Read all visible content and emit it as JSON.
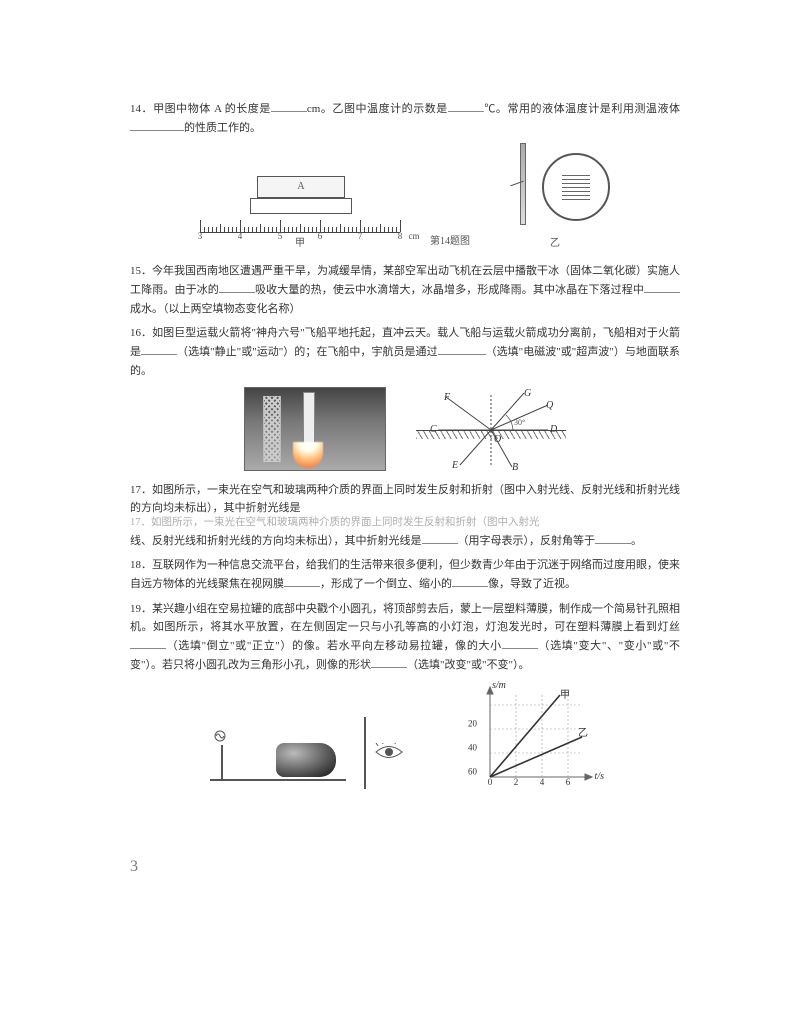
{
  "q14": {
    "num": "14．",
    "text_a": "甲图中物体 A 的长度是",
    "text_b": "cm。乙图中温度计的示数是",
    "text_c": "℃。常用的液体温度计是利用测温液体",
    "text_d": "的性质工作的。",
    "block_label": "A",
    "ruler_cap_left": "甲",
    "ruler_cap_center": "第14题图",
    "ruler_cap_right": "乙",
    "ruler_labels": [
      "3",
      "4",
      "5",
      "6",
      "7",
      "8"
    ],
    "ruler_unit": "cm"
  },
  "q15": {
    "num": "15．",
    "text_a": "今年我国西南地区遭遇严重干旱，为减缓旱情，某部空军出动飞机在云层中播散干冰（固体二氧化碳）实施人工降雨。由于冰的",
    "text_b": "吸收大量的热，使云中水滴增大，冰晶增多，形成降雨。其中冰晶在下落过程中",
    "text_c": "成水。（以上两空填物态变化名称）"
  },
  "q16": {
    "num": "16．",
    "text_a": "如图巨型运载火箭将\"神舟六号\"飞船平地托起，直冲云天。载人飞船与运载火箭成功分离前，飞船相对于火箭是",
    "text_b": "（选填\"静止\"或\"运动\"）的；在飞船中，宇航员是通过",
    "text_c": "（选填\"电磁波\"或\"超声波\"）与地面联系的。"
  },
  "rays": {
    "F": "F",
    "G": "G",
    "C": "C",
    "D": "D",
    "E": "E",
    "B": "B",
    "Q": "Q",
    "O": "O"
  },
  "q17": {
    "num": "17．",
    "text_a": "如图所示，一束光在空气和玻璃两种介质的界面上同时发生反射和折射（图中入射光线、反射光线和折射光线的方向均未标出），其中折射光线是",
    "shadow": "17．如图所示，一束光在空气和玻璃两种介质的界面上同时发生反射和折射（图中入射光",
    "text_b": "线、反射光线和折射光线的方向均未标出），其中折射光线是",
    "text_c": "（用字母表示），反射角等于",
    "text_d": "。"
  },
  "q18": {
    "num": "18．",
    "text_a": "互联网作为一种信息交流平台，给我们的生活带来很多便利，但少数青少年由于沉迷于网络而过度用眼，使来自远方物体的光线聚焦在视网膜",
    "text_b": "，形成了一个倒立、缩小的",
    "text_c": "像，导致了近视。"
  },
  "q19": {
    "num": "19．",
    "text_a": "某兴趣小组在空易拉罐的底部中央戳个小圆孔，将顶部剪去后，蒙上一层塑料薄膜，制作成一个简易针孔照相机。如图所示，将其水平放置，在左侧固定一只与小孔等高的小灯泡，灯泡发光时，可在塑料薄膜上看到灯丝",
    "text_b": "（选填\"倒立\"或\"正立\"）的像。若水平向左移动易拉罐，像的大小",
    "text_c": "（选填\"变大\"、\"变小\"或\"不变\"）。若只将小圆孔改为三角形小孔，则像的形状",
    "text_d": "（选填\"改变\"或\"不变\"）。"
  },
  "chart": {
    "ylabel": "s/m",
    "xlabel": "t/s",
    "xticks": [
      "0",
      "2",
      "4",
      "6"
    ],
    "yticks": [
      "20",
      "40",
      "60"
    ],
    "lineA": "甲",
    "lineB": "乙"
  },
  "pagenum": "3",
  "colors": {
    "text": "#333333",
    "faint": "#999999",
    "line": "#444444"
  }
}
